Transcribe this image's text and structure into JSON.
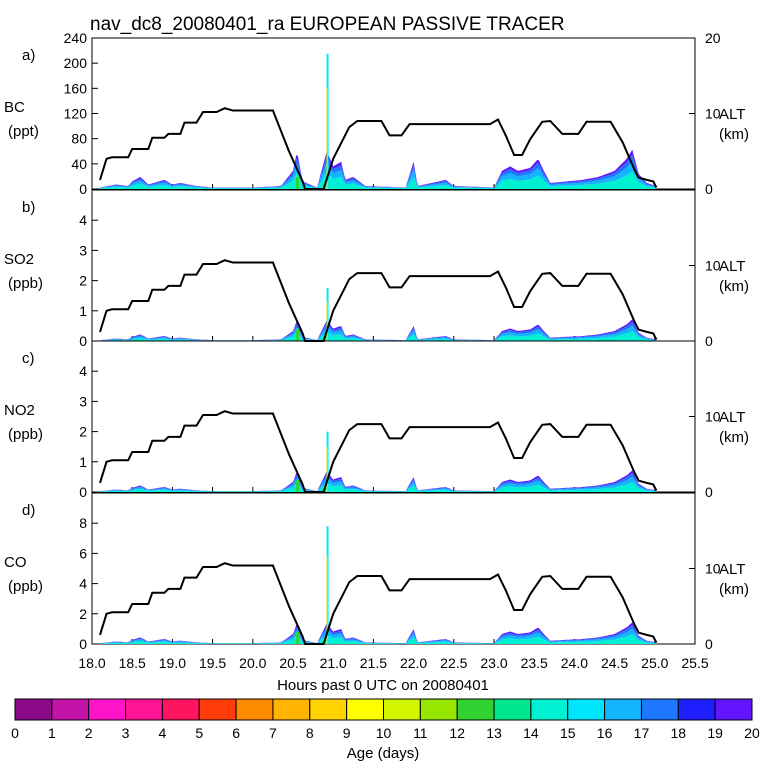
{
  "chart_data": {
    "type": "area",
    "title": "nav_dc8_20080401_ra EUROPEAN PASSIVE TRACER",
    "xlabel": "Hours past 0 UTC on 20080401",
    "xlim": [
      18.0,
      25.5
    ],
    "x_ticks": [
      "18.0",
      "18.5",
      "19.0",
      "19.5",
      "20.0",
      "20.5",
      "21.0",
      "21.5",
      "22.0",
      "22.5",
      "23.0",
      "23.5",
      "24.0",
      "24.5",
      "25.0",
      "25.5"
    ],
    "altitude_axis": {
      "label": "ALT",
      "unit": "(km)",
      "ylim": [
        0,
        20
      ],
      "tick_labels": [
        "0",
        "10",
        "20"
      ],
      "profile": [
        [
          18.1,
          1.2
        ],
        [
          18.18,
          4
        ],
        [
          18.25,
          4.2
        ],
        [
          18.45,
          4.2
        ],
        [
          18.5,
          5.3
        ],
        [
          18.7,
          5.3
        ],
        [
          18.75,
          6.8
        ],
        [
          18.9,
          6.8
        ],
        [
          18.95,
          7.3
        ],
        [
          19.1,
          7.3
        ],
        [
          19.15,
          8.8
        ],
        [
          19.3,
          8.8
        ],
        [
          19.38,
          10.2
        ],
        [
          19.55,
          10.2
        ],
        [
          19.65,
          10.7
        ],
        [
          19.75,
          10.4
        ],
        [
          20.25,
          10.4
        ],
        [
          20.45,
          5
        ],
        [
          20.62,
          1
        ],
        [
          20.65,
          0
        ],
        [
          20.88,
          0
        ],
        [
          21.0,
          4
        ],
        [
          21.2,
          8.2
        ],
        [
          21.3,
          9
        ],
        [
          21.6,
          9
        ],
        [
          21.7,
          7.1
        ],
        [
          21.85,
          7.1
        ],
        [
          21.95,
          8.6
        ],
        [
          22.85,
          8.6
        ],
        [
          22.95,
          8.6
        ],
        [
          23.05,
          9.2
        ],
        [
          23.15,
          7
        ],
        [
          23.25,
          4.5
        ],
        [
          23.35,
          4.5
        ],
        [
          23.45,
          6.6
        ],
        [
          23.6,
          8.9
        ],
        [
          23.7,
          9
        ],
        [
          23.85,
          7.3
        ],
        [
          24.05,
          7.3
        ],
        [
          24.15,
          8.9
        ],
        [
          24.45,
          8.9
        ],
        [
          24.6,
          6.2
        ],
        [
          24.75,
          2.5
        ],
        [
          24.8,
          1.5
        ],
        [
          24.9,
          1.2
        ],
        [
          24.98,
          1
        ],
        [
          25.02,
          0.2
        ]
      ]
    },
    "panels": [
      {
        "id": "a",
        "letter": "a)",
        "species": "BC",
        "unit": "(ppt)",
        "ylim": [
          0,
          240
        ],
        "y_ticks": [
          0,
          40,
          80,
          120,
          160,
          200,
          240
        ],
        "tick_labels": [
          "0",
          "40",
          "80",
          "120",
          "160",
          "200",
          "240"
        ],
        "spike_value": 215
      },
      {
        "id": "b",
        "letter": "b)",
        "species": "SO2",
        "unit": "(ppb)",
        "ylim": [
          0,
          5
        ],
        "y_ticks": [
          0,
          1,
          2,
          3,
          4
        ],
        "tick_labels": [
          "0",
          "1",
          "2",
          "3",
          "4"
        ],
        "spike_value": 1.75
      },
      {
        "id": "c",
        "letter": "c)",
        "species": "NO2",
        "unit": "(ppb)",
        "ylim": [
          0,
          5
        ],
        "y_ticks": [
          0,
          1,
          2,
          3,
          4
        ],
        "tick_labels": [
          "0",
          "1",
          "2",
          "3",
          "4"
        ],
        "spike_value": 2.0
      },
      {
        "id": "d",
        "letter": "d)",
        "species": "CO",
        "unit": "(ppb)",
        "ylim": [
          0,
          10
        ],
        "y_ticks": [
          0,
          2,
          4,
          6,
          8
        ],
        "tick_labels": [
          "0",
          "2",
          "4",
          "6",
          "8"
        ],
        "spike_value": 7.8
      }
    ],
    "tracer_profile": {
      "note": "relative stacked-age tracer magnitude vs time (fraction of BC scale)",
      "points": [
        [
          18.1,
          0.01
        ],
        [
          18.3,
          0.03
        ],
        [
          18.45,
          0.02
        ],
        [
          18.5,
          0.05
        ],
        [
          18.6,
          0.08
        ],
        [
          18.7,
          0.03
        ],
        [
          18.9,
          0.06
        ],
        [
          19.0,
          0.03
        ],
        [
          19.1,
          0.04
        ],
        [
          19.3,
          0.02
        ],
        [
          19.5,
          0.01
        ],
        [
          20.0,
          0.01
        ],
        [
          20.35,
          0.02
        ],
        [
          20.5,
          0.12
        ],
        [
          20.55,
          0.25
        ],
        [
          20.62,
          0.05
        ],
        [
          20.8,
          0.01
        ],
        [
          20.92,
          0.25
        ],
        [
          21.0,
          0.15
        ],
        [
          21.1,
          0.18
        ],
        [
          21.15,
          0.06
        ],
        [
          21.25,
          0.08
        ],
        [
          21.4,
          0.02
        ],
        [
          21.9,
          0.01
        ],
        [
          22.0,
          0.18
        ],
        [
          22.05,
          0.02
        ],
        [
          22.4,
          0.06
        ],
        [
          22.5,
          0.02
        ],
        [
          23.0,
          0.01
        ],
        [
          23.1,
          0.12
        ],
        [
          23.2,
          0.15
        ],
        [
          23.3,
          0.12
        ],
        [
          23.45,
          0.14
        ],
        [
          23.55,
          0.2
        ],
        [
          23.62,
          0.12
        ],
        [
          23.7,
          0.04
        ],
        [
          23.9,
          0.05
        ],
        [
          24.1,
          0.06
        ],
        [
          24.3,
          0.08
        ],
        [
          24.5,
          0.12
        ],
        [
          24.65,
          0.2
        ],
        [
          24.72,
          0.26
        ],
        [
          24.8,
          0.1
        ],
        [
          24.9,
          0.04
        ],
        [
          25.02,
          0.02
        ]
      ]
    },
    "colorbar": {
      "label": "Age (days)",
      "tick_labels": [
        "0",
        "1",
        "2",
        "3",
        "4",
        "5",
        "6",
        "7",
        "8",
        "9",
        "10",
        "11",
        "12",
        "13",
        "14",
        "15",
        "16",
        "17",
        "18",
        "19",
        "20"
      ],
      "colors": [
        "#8a0a8a",
        "#c414a8",
        "#ff14c8",
        "#ff1493",
        "#ff1460",
        "#ff3c0a",
        "#ff8c00",
        "#ffb400",
        "#ffd200",
        "#ffff00",
        "#d2f500",
        "#96e600",
        "#32d232",
        "#00e68c",
        "#00f0d2",
        "#00e6ff",
        "#14b4ff",
        "#1e78ff",
        "#1e1eff",
        "#6414ff"
      ]
    },
    "colors": {
      "altitude_line": "#000000",
      "spike_green": "#32d232",
      "spike_yellow": "#e6e600"
    }
  }
}
